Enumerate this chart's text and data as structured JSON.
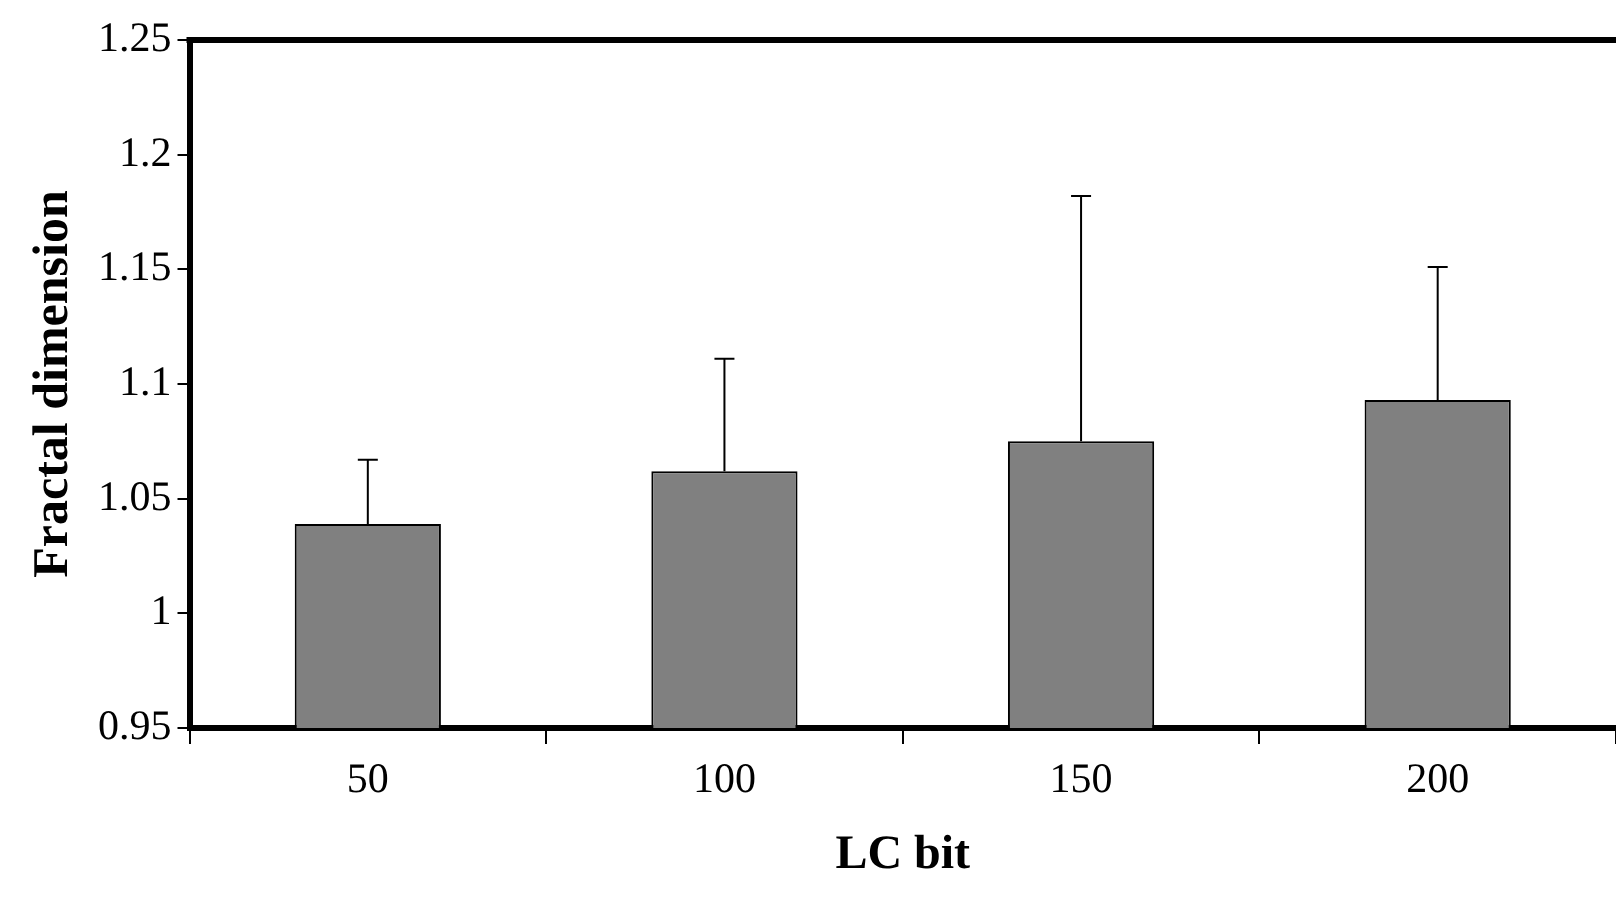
{
  "chart_data": {
    "type": "bar",
    "xlabel": "LC bit",
    "ylabel": "Fractal dimension",
    "categories": [
      "50",
      "100",
      "150",
      "200"
    ],
    "values": [
      1.039,
      1.062,
      1.075,
      1.093
    ],
    "errors": [
      [
        1.039,
        1.067
      ],
      [
        1.062,
        1.111
      ],
      [
        1.075,
        1.182
      ],
      [
        1.093,
        1.151
      ]
    ],
    "color": "#808080",
    "ylim": [
      0.95,
      1.25
    ],
    "yticks": [
      0.95,
      1,
      1.05,
      1.1,
      1.15,
      1.2,
      1.25
    ],
    "grid": false,
    "legend": false
  }
}
